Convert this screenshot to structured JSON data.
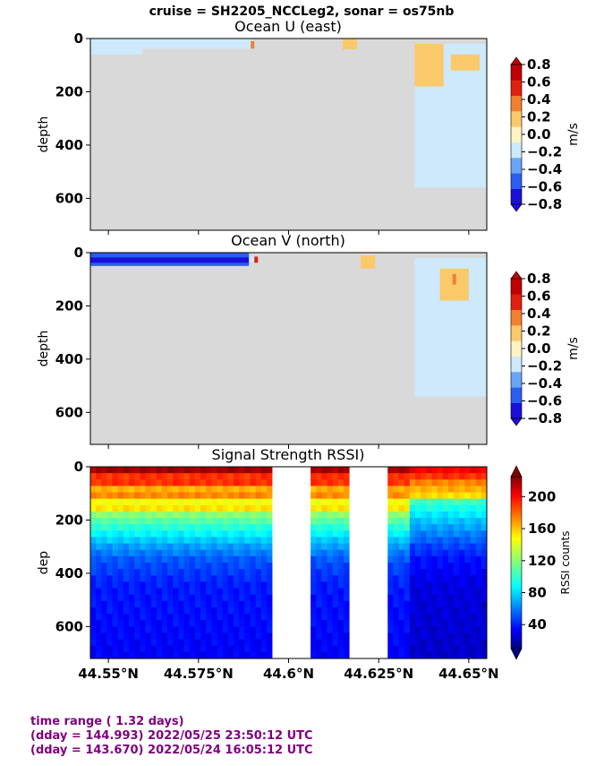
{
  "suptitle": "cruise = SH2205_NCCLeg2,  sonar = os75nb",
  "chart_data": [
    {
      "type": "heatmap",
      "title": "Ocean U (east)",
      "ylabel": "depth",
      "ylim": [
        720,
        0
      ],
      "y_ticks": [
        "0",
        "200",
        "400",
        "600"
      ],
      "y_tick_values": [
        0,
        200,
        400,
        600
      ],
      "xlim": [
        44.545,
        44.655
      ],
      "colorbar": {
        "label": "m/s",
        "ticks": [
          "0.8",
          "0.6",
          "0.4",
          "0.2",
          "0.0",
          "−0.2",
          "−0.4",
          "−0.6",
          "−0.8"
        ],
        "tick_values": [
          0.8,
          0.6,
          0.4,
          0.2,
          0.0,
          -0.2,
          -0.4,
          -0.6,
          -0.8
        ],
        "range": [
          -0.8,
          0.8
        ],
        "colormap": "discrete blue-white-red",
        "colors": [
          "#1a0fd9",
          "#2a5ef0",
          "#6aa4f5",
          "#cde9fb",
          "#fff3c4",
          "#f9c96a",
          "#f08030",
          "#e02010",
          "#c00000"
        ]
      },
      "no_data_color": "#d9d9d9",
      "regions": [
        {
          "lat_start": 44.545,
          "lat_end": 44.5595,
          "depth_start": 0,
          "depth_end": 60,
          "value": -0.1
        },
        {
          "lat_start": 44.5595,
          "lat_end": 44.59,
          "depth_start": 0,
          "depth_end": 38,
          "value": -0.1
        },
        {
          "lat_start": 44.5895,
          "lat_end": 44.5905,
          "depth_start": 10,
          "depth_end": 38,
          "value": 0.3
        },
        {
          "lat_start": 44.615,
          "lat_end": 44.619,
          "depth_start": 0,
          "depth_end": 40,
          "value": 0.1
        },
        {
          "lat_start": 44.635,
          "lat_end": 44.655,
          "depth_start": 20,
          "depth_end": 560,
          "value": -0.1
        },
        {
          "lat_start": 44.635,
          "lat_end": 44.643,
          "depth_start": 20,
          "depth_end": 180,
          "value": 0.1
        },
        {
          "lat_start": 44.645,
          "lat_end": 44.653,
          "depth_start": 60,
          "depth_end": 120,
          "value": 0.1
        }
      ]
    },
    {
      "type": "heatmap",
      "title": "Ocean V (north)",
      "ylabel": "depth",
      "ylim": [
        720,
        0
      ],
      "y_ticks": [
        "0",
        "200",
        "400",
        "600"
      ],
      "y_tick_values": [
        0,
        200,
        400,
        600
      ],
      "xlim": [
        44.545,
        44.655
      ],
      "colorbar": {
        "label": "m/s",
        "ticks": [
          "0.8",
          "0.6",
          "0.4",
          "0.2",
          "0.0",
          "−0.2",
          "−0.4",
          "−0.6",
          "−0.8"
        ],
        "tick_values": [
          0.8,
          0.6,
          0.4,
          0.2,
          0.0,
          -0.2,
          -0.4,
          -0.6,
          -0.8
        ],
        "range": [
          -0.8,
          0.8
        ],
        "colormap": "discrete blue-white-red",
        "colors": [
          "#1a0fd9",
          "#2a5ef0",
          "#6aa4f5",
          "#cde9fb",
          "#fff3c4",
          "#f9c96a",
          "#f08030",
          "#e02010",
          "#c00000"
        ]
      },
      "no_data_color": "#d9d9d9",
      "regions": [
        {
          "lat_start": 44.545,
          "lat_end": 44.589,
          "depth_start": 0,
          "depth_end": 50,
          "value": -0.5
        },
        {
          "lat_start": 44.545,
          "lat_end": 44.589,
          "depth_start": 18,
          "depth_end": 38,
          "value": -0.7
        },
        {
          "lat_start": 44.589,
          "lat_end": 44.5915,
          "depth_start": 15,
          "depth_end": 38,
          "value": -0.1
        },
        {
          "lat_start": 44.5905,
          "lat_end": 44.5915,
          "depth_start": 15,
          "depth_end": 38,
          "value": 0.5
        },
        {
          "lat_start": 44.62,
          "lat_end": 44.624,
          "depth_start": 10,
          "depth_end": 60,
          "value": 0.1
        },
        {
          "lat_start": 44.635,
          "lat_end": 44.655,
          "depth_start": 20,
          "depth_end": 540,
          "value": -0.1
        },
        {
          "lat_start": 44.642,
          "lat_end": 44.65,
          "depth_start": 60,
          "depth_end": 180,
          "value": 0.1
        },
        {
          "lat_start": 44.6455,
          "lat_end": 44.6465,
          "depth_start": 80,
          "depth_end": 120,
          "value": 0.3
        }
      ]
    },
    {
      "type": "heatmap",
      "title": "Signal Strength RSSI)",
      "ylabel": "dep",
      "ylim": [
        720,
        0
      ],
      "y_ticks": [
        "0",
        "200",
        "400",
        "600"
      ],
      "y_tick_values": [
        0,
        200,
        400,
        600
      ],
      "xlim": [
        44.545,
        44.655
      ],
      "x_ticks": [
        "44.55°N",
        "44.575°N",
        "44.6°N",
        "44.625°N",
        "44.65°N"
      ],
      "x_tick_values": [
        44.55,
        44.575,
        44.6,
        44.625,
        44.65
      ],
      "colorbar": {
        "label": "RSSI counts",
        "ticks": [
          "200",
          "160",
          "120",
          "80",
          "40"
        ],
        "tick_values": [
          200,
          160,
          120,
          80,
          40
        ],
        "range": [
          10,
          225
        ],
        "colormap": "jet"
      },
      "gaps": [
        {
          "lat_start": 44.5955,
          "lat_end": 44.6065
        },
        {
          "lat_start": 44.6175,
          "lat_end": 44.6275
        }
      ],
      "profile": [
        {
          "depth": 20,
          "value": 200
        },
        {
          "depth": 60,
          "value": 170
        },
        {
          "depth": 100,
          "value": 155
        },
        {
          "depth": 150,
          "value": 135
        },
        {
          "depth": 200,
          "value": 110
        },
        {
          "depth": 250,
          "value": 90
        },
        {
          "depth": 300,
          "value": 70
        },
        {
          "depth": 350,
          "value": 55
        },
        {
          "depth": 450,
          "value": 42
        },
        {
          "depth": 720,
          "value": 35
        }
      ]
    }
  ],
  "footer": {
    "line1": "time range ( 1.32 days)",
    "line2": "(dday = 144.993) 2022/05/25 23:50:12 UTC",
    "line3": "(dday = 143.670) 2022/05/24 16:05:12 UTC"
  }
}
